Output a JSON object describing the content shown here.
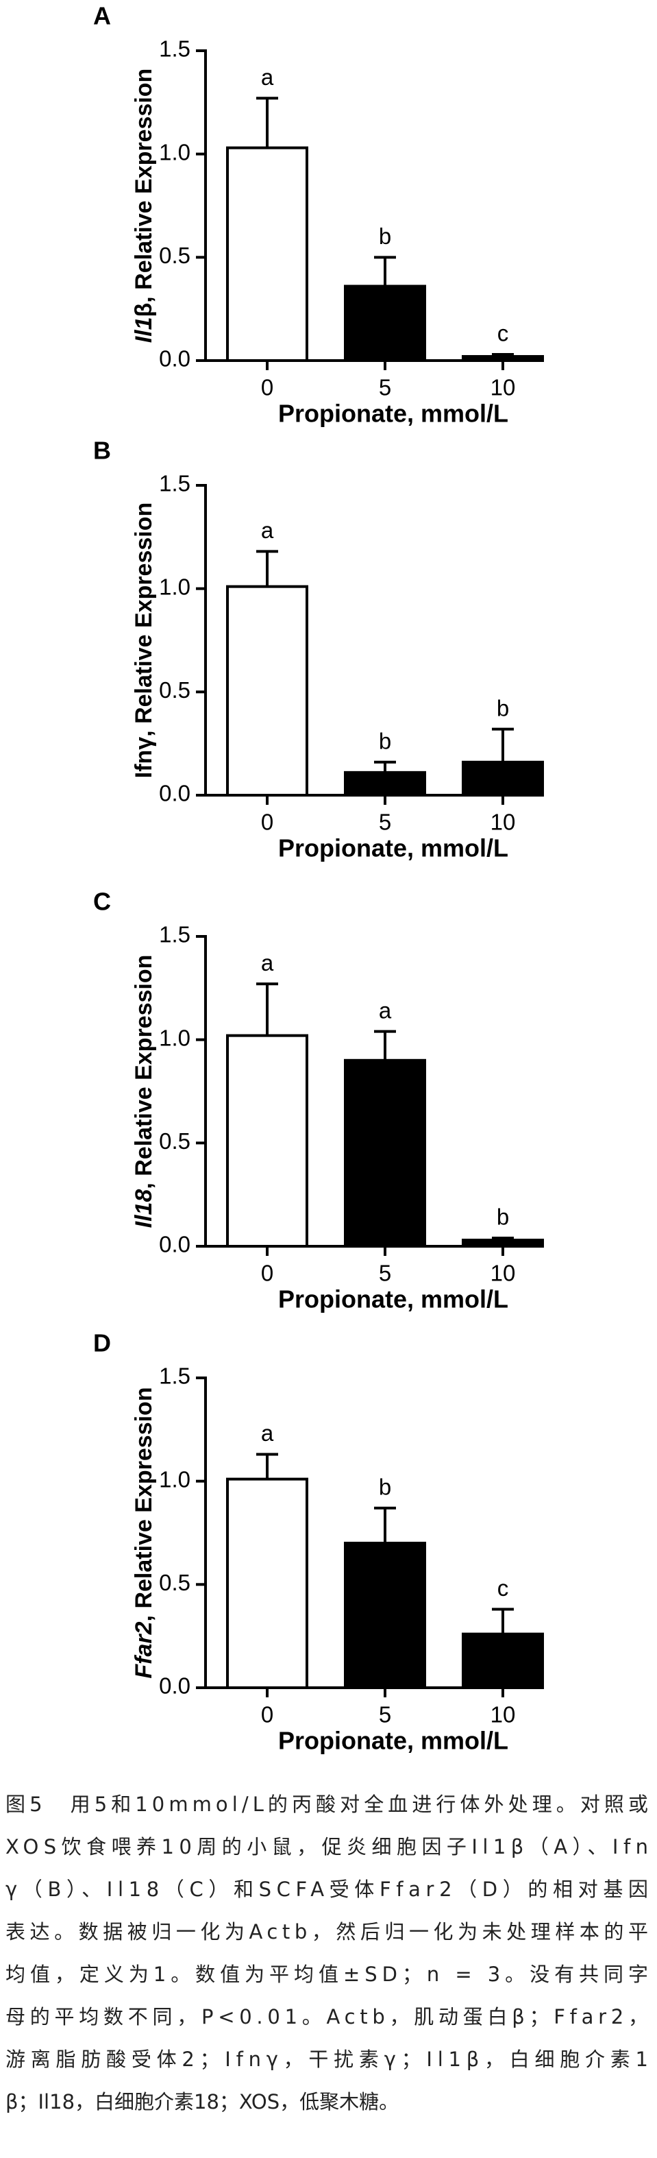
{
  "chart_data": [
    {
      "type": "bar",
      "panel": "A",
      "ylabel_gene": "Il1",
      "ylabel_text": "β, Relative Expression",
      "ylabel_gene_italic": true,
      "xlabel": "Propionate, mmol/L",
      "categories": [
        "0",
        "5",
        "10"
      ],
      "values": [
        1.03,
        0.36,
        0.02
      ],
      "errors": [
        0.24,
        0.14,
        0.01
      ],
      "annotations": [
        "a",
        "b",
        "c"
      ],
      "colors": [
        "#ffffff",
        "#000000",
        "#000000"
      ],
      "ylim": [
        0,
        1.5
      ],
      "yticks": [
        {
          "value": 0,
          "label": "0.0"
        },
        {
          "value": 0.5,
          "label": "0.5"
        },
        {
          "value": 1,
          "label": "1.0"
        },
        1.5
      ]
    },
    {
      "type": "bar",
      "panel": "B",
      "ylabel_gene": "Ifnγ",
      "ylabel_text": ", Relative Expression",
      "ylabel_gene_italic": false,
      "xlabel": "Propionate, mmol/L",
      "categories": [
        "0",
        "5",
        "10"
      ],
      "values": [
        1.01,
        0.11,
        0.16
      ],
      "errors": [
        0.17,
        0.05,
        0.16
      ],
      "annotations": [
        "a",
        "b",
        "b"
      ],
      "colors": [
        "#ffffff",
        "#000000",
        "#000000"
      ],
      "ylim": [
        0,
        1.5
      ],
      "yticks": [
        {
          "value": 0,
          "label": "0.0"
        },
        {
          "value": 0.5,
          "label": "0.5"
        },
        {
          "value": 1,
          "label": "1.0"
        },
        1.5
      ]
    },
    {
      "type": "bar",
      "panel": "C",
      "ylabel_gene": "Il18",
      "ylabel_text": ", Relative Expression",
      "ylabel_gene_italic": true,
      "xlabel": "Propionate, mmol/L",
      "categories": [
        "0",
        "5",
        "10"
      ],
      "values": [
        1.02,
        0.9,
        0.03
      ],
      "errors": [
        0.25,
        0.14,
        0.01
      ],
      "annotations": [
        "a",
        "a",
        "b"
      ],
      "colors": [
        "#ffffff",
        "#000000",
        "#000000"
      ],
      "ylim": [
        0,
        1.5
      ],
      "yticks": [
        {
          "value": 0,
          "label": "0.0"
        },
        {
          "value": 0.5,
          "label": "0.5"
        },
        {
          "value": 1,
          "label": "1.0"
        },
        1.5
      ]
    },
    {
      "type": "bar",
      "panel": "D",
      "ylabel_gene": "Ffar2",
      "ylabel_text": ", Relative Expression",
      "ylabel_gene_italic": true,
      "xlabel": "Propionate, mmol/L",
      "categories": [
        "0",
        "5",
        "10"
      ],
      "values": [
        1.01,
        0.7,
        0.26
      ],
      "errors": [
        0.12,
        0.17,
        0.12
      ],
      "annotations": [
        "a",
        "b",
        "c"
      ],
      "colors": [
        "#ffffff",
        "#000000",
        "#000000"
      ],
      "ylim": [
        0,
        1.5
      ],
      "yticks": [
        {
          "value": 0,
          "label": "0.0"
        },
        {
          "value": 0.5,
          "label": "0.5"
        },
        {
          "value": 1,
          "label": "1.0"
        },
        1.5
      ]
    }
  ],
  "caption": [
    "图5　用5和10mmol/L的丙酸对全血进行体外处理。对照或",
    "XOS饮食喂养10周的小鼠，促炎细胞因子Il1β（A）、Ifn",
    "γ（B）、Il18（C）和SCFA受体Ffar2（D）的相对基因",
    "表达。数据被归一化为Actb，然后归一化为未处理样本的平",
    "均值，定义为1。数值为平均值±SD；n = 3。没有共同字",
    "母的平均数不同，P<0.01。Actb，肌动蛋白β；Ffar2，",
    "游离脂肪酸受体2；Ifnγ，干扰素γ；Il1β，白细胞介素1",
    "β；Il18，白细胞介素18；XOS，低聚木糖。"
  ]
}
